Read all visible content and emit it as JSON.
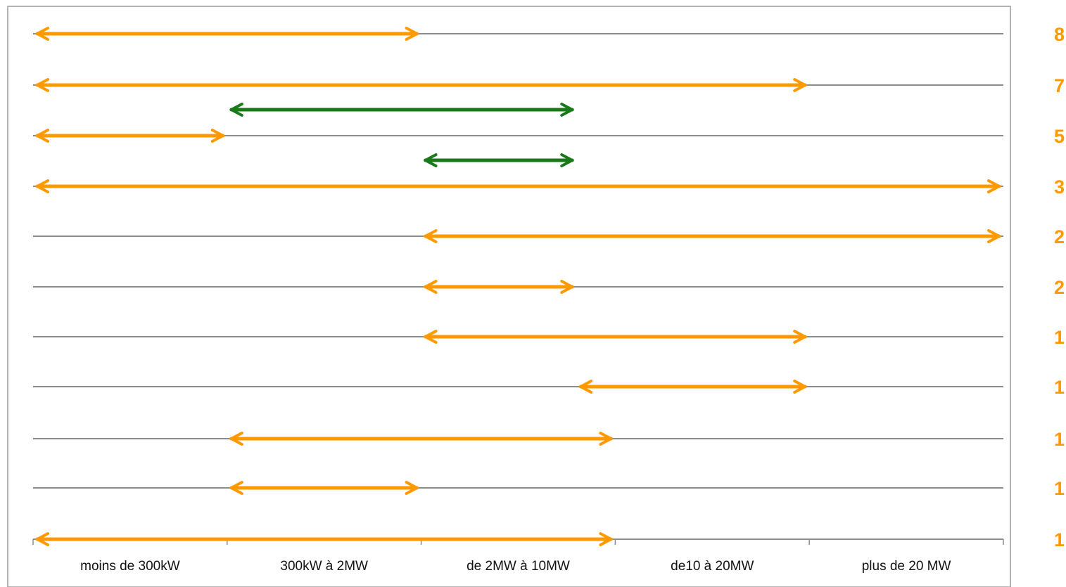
{
  "chart_data": {
    "type": "range-arrows",
    "categories": [
      "moins de 300kW",
      "300kW à 2MW",
      "de 2MW à 10MW",
      "de10 à 20MW",
      "plus de 20 MW"
    ],
    "rows": [
      {
        "count": "8",
        "ranges": [
          {
            "from": 0.0,
            "to": 2.0,
            "color": "orange"
          }
        ]
      },
      {
        "count": "7",
        "ranges": [
          {
            "from": 0.0,
            "to": 4.0,
            "color": "orange"
          }
        ]
      },
      {
        "count": "5",
        "ranges": [
          {
            "from": 0.0,
            "to": 1.0,
            "color": "orange"
          },
          {
            "from": 1.0,
            "to": 2.8,
            "color": "green"
          }
        ]
      },
      {
        "count": "3",
        "ranges": [
          {
            "from": 0.0,
            "to": 5.0,
            "color": "orange"
          },
          {
            "from": 2.0,
            "to": 2.8,
            "color": "green"
          }
        ]
      },
      {
        "count": "2",
        "ranges": [
          {
            "from": 2.0,
            "to": 5.0,
            "color": "orange"
          }
        ]
      },
      {
        "count": "2",
        "ranges": [
          {
            "from": 2.0,
            "to": 2.8,
            "color": "orange"
          }
        ]
      },
      {
        "count": "1",
        "ranges": [
          {
            "from": 2.0,
            "to": 4.0,
            "color": "orange"
          }
        ]
      },
      {
        "count": "1",
        "ranges": [
          {
            "from": 2.8,
            "to": 4.0,
            "color": "orange"
          }
        ]
      },
      {
        "count": "1",
        "ranges": [
          {
            "from": 1.0,
            "to": 3.0,
            "color": "orange"
          }
        ]
      },
      {
        "count": "1",
        "ranges": [
          {
            "from": 1.0,
            "to": 2.0,
            "color": "orange"
          }
        ]
      },
      {
        "count": "1",
        "ranges": [
          {
            "from": 0.0,
            "to": 3.0,
            "color": "orange"
          }
        ]
      }
    ],
    "colors": {
      "orange": "#FF9900",
      "green": "#1A7A1A",
      "gridline": "#8C8C8C",
      "count_text": "#FF9900",
      "frame": "#9A9A9A"
    },
    "grid": true,
    "legend": "none"
  }
}
